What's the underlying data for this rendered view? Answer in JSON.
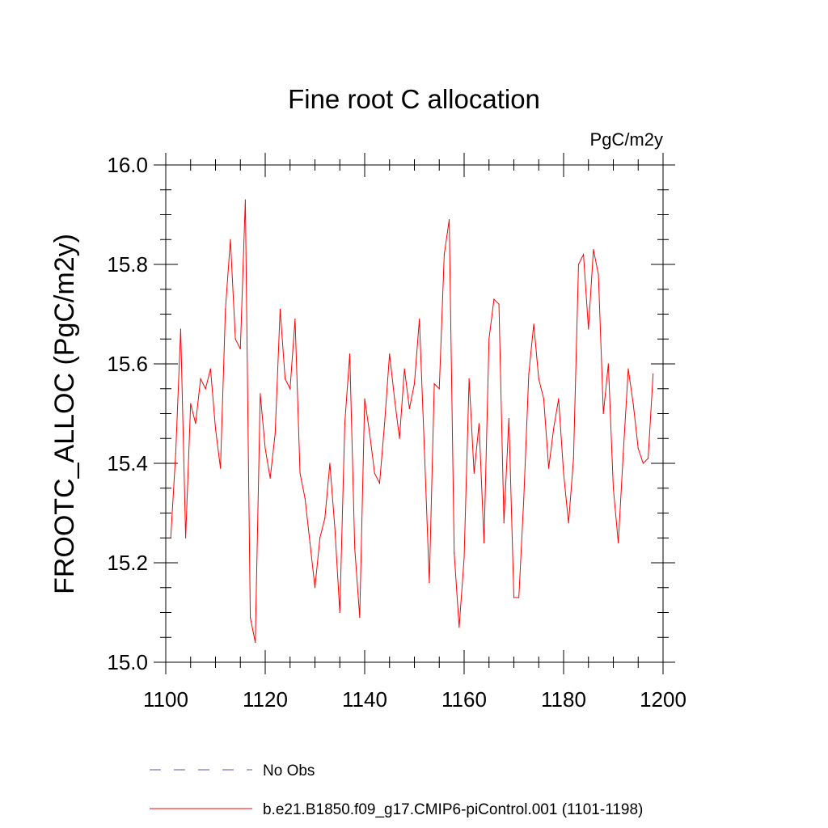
{
  "chart_data": {
    "type": "line",
    "title": "Fine root C allocation",
    "units_label": "PgC/m2y",
    "xlabel": "",
    "ylabel": "FROOTC_ALLOC  (PgC/m2y)",
    "xlim": [
      1100,
      1200
    ],
    "ylim": [
      15.0,
      16.0
    ],
    "x_ticks": [
      1100,
      1120,
      1140,
      1160,
      1180,
      1200
    ],
    "y_ticks": [
      "15.0",
      "15.2",
      "15.4",
      "15.6",
      "15.8",
      "16.0"
    ],
    "grid": false,
    "legend_position": "bottom",
    "legend": [
      {
        "label": "No Obs",
        "color": "#5a50b4",
        "dash": "dashed"
      },
      {
        "label": "b.e21.B1850.f09_g17.CMIP6-piControl.001 (1101-1198)",
        "color": "#ff0000",
        "dash": "solid"
      }
    ],
    "series": [
      {
        "name": "b.e21.B1850.f09_g17.CMIP6-piControl.001 (1101-1198)",
        "color": "#ff0000",
        "x": [
          1101,
          1102,
          1103,
          1104,
          1105,
          1106,
          1107,
          1108,
          1109,
          1110,
          1111,
          1112,
          1113,
          1114,
          1115,
          1116,
          1117,
          1118,
          1119,
          1120,
          1121,
          1122,
          1123,
          1124,
          1125,
          1126,
          1127,
          1128,
          1129,
          1130,
          1131,
          1132,
          1133,
          1134,
          1135,
          1136,
          1137,
          1138,
          1139,
          1140,
          1141,
          1142,
          1143,
          1144,
          1145,
          1146,
          1147,
          1148,
          1149,
          1150,
          1151,
          1152,
          1153,
          1154,
          1155,
          1156,
          1157,
          1158,
          1159,
          1160,
          1161,
          1162,
          1163,
          1164,
          1165,
          1166,
          1167,
          1168,
          1169,
          1170,
          1171,
          1172,
          1173,
          1174,
          1175,
          1176,
          1177,
          1178,
          1179,
          1180,
          1181,
          1182,
          1183,
          1184,
          1185,
          1186,
          1187,
          1188,
          1189,
          1190,
          1191,
          1192,
          1193,
          1194,
          1195,
          1196,
          1197,
          1198
        ],
        "y": [
          15.25,
          15.42,
          15.67,
          15.25,
          15.52,
          15.48,
          15.57,
          15.55,
          15.59,
          15.47,
          15.39,
          15.71,
          15.85,
          15.65,
          15.63,
          15.93,
          15.09,
          15.04,
          15.54,
          15.43,
          15.37,
          15.46,
          15.71,
          15.57,
          15.55,
          15.69,
          15.38,
          15.33,
          15.24,
          15.15,
          15.25,
          15.29,
          15.4,
          15.27,
          15.1,
          15.48,
          15.62,
          15.23,
          15.09,
          15.53,
          15.46,
          15.38,
          15.36,
          15.48,
          15.62,
          15.53,
          15.45,
          15.59,
          15.51,
          15.56,
          15.69,
          15.43,
          15.16,
          15.56,
          15.55,
          15.82,
          15.89,
          15.22,
          15.07,
          15.21,
          15.57,
          15.38,
          15.48,
          15.24,
          15.65,
          15.73,
          15.72,
          15.28,
          15.49,
          15.13,
          15.13,
          15.33,
          15.58,
          15.68,
          15.57,
          15.53,
          15.39,
          15.47,
          15.53,
          15.38,
          15.28,
          15.41,
          15.8,
          15.82,
          15.67,
          15.83,
          15.78,
          15.5,
          15.6,
          15.35,
          15.24,
          15.42,
          15.59,
          15.52,
          15.43,
          15.4,
          15.41,
          15.58
        ]
      }
    ]
  }
}
